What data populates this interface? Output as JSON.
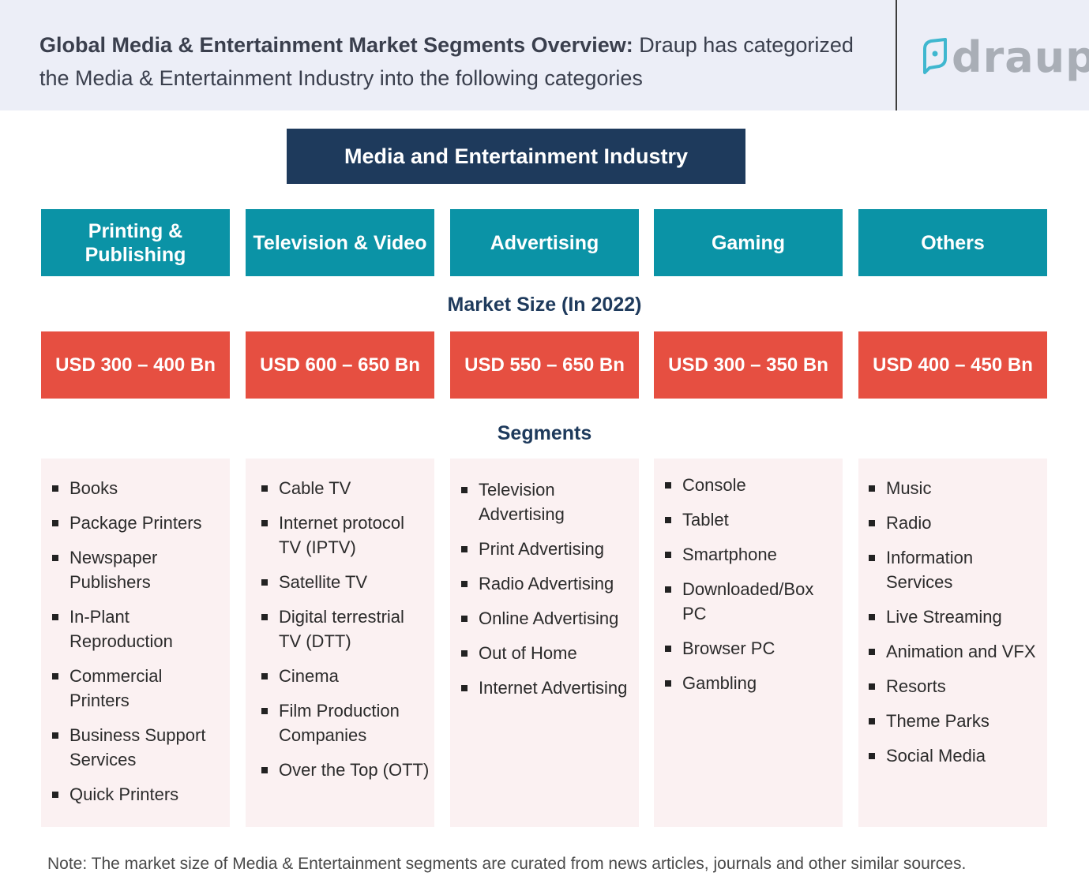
{
  "header": {
    "title_bold": "Global Media & Entertainment Market Segments Overview:",
    "title_rest": " Draup has categorized the Media & Entertainment Industry into the following categories",
    "logo_text": "draup",
    "logo_icon": "draup-leaf-icon"
  },
  "top_box": "Media and Entertainment Industry",
  "market_size_label": "Market Size (In 2022)",
  "segments_label": "Segments",
  "columns": [
    {
      "title": "Printing & Publishing",
      "size": "USD 300 – 400 Bn",
      "segments": [
        "Books",
        "Package Printers",
        "Newspaper Publishers",
        "In-Plant Reproduction",
        "Commercial Printers",
        "Business Support Services",
        "Quick Printers"
      ]
    },
    {
      "title": "Television & Video",
      "size": "USD 600 – 650 Bn",
      "segments": [
        "Cable TV",
        "Internet protocol TV (IPTV)",
        "Satellite TV",
        "Digital terrestrial TV (DTT)",
        "Cinema",
        "Film Production Companies",
        "Over the Top (OTT)"
      ]
    },
    {
      "title": "Advertising",
      "size": "USD 550 – 650 Bn",
      "segments": [
        "Television Advertising",
        "Print Advertising",
        "Radio Advertising",
        "Online Advertising",
        "Out of Home",
        "Internet Advertising"
      ]
    },
    {
      "title": "Gaming",
      "size": "USD 300 – 350 Bn",
      "segments": [
        "Console",
        "Tablet",
        "Smartphone",
        "Downloaded/Box PC",
        "Browser PC",
        "Gambling"
      ]
    },
    {
      "title": "Others",
      "size": "USD 400 – 450 Bn",
      "segments": [
        "Music",
        "Radio",
        "Information Services",
        "Live Streaming",
        "Animation and VFX",
        "Resorts",
        "Theme Parks",
        "Social Media"
      ]
    }
  ],
  "note": "Note: The market size of Media & Entertainment segments are curated from news articles, journals and other similar sources.",
  "colors": {
    "header_bg": "#eceef7",
    "navy": "#1e3a5c",
    "teal": "#0b93a6",
    "red": "#e64f41",
    "segment_bg": "#fbf1f2",
    "logo_accent": "#3fb7cf"
  }
}
